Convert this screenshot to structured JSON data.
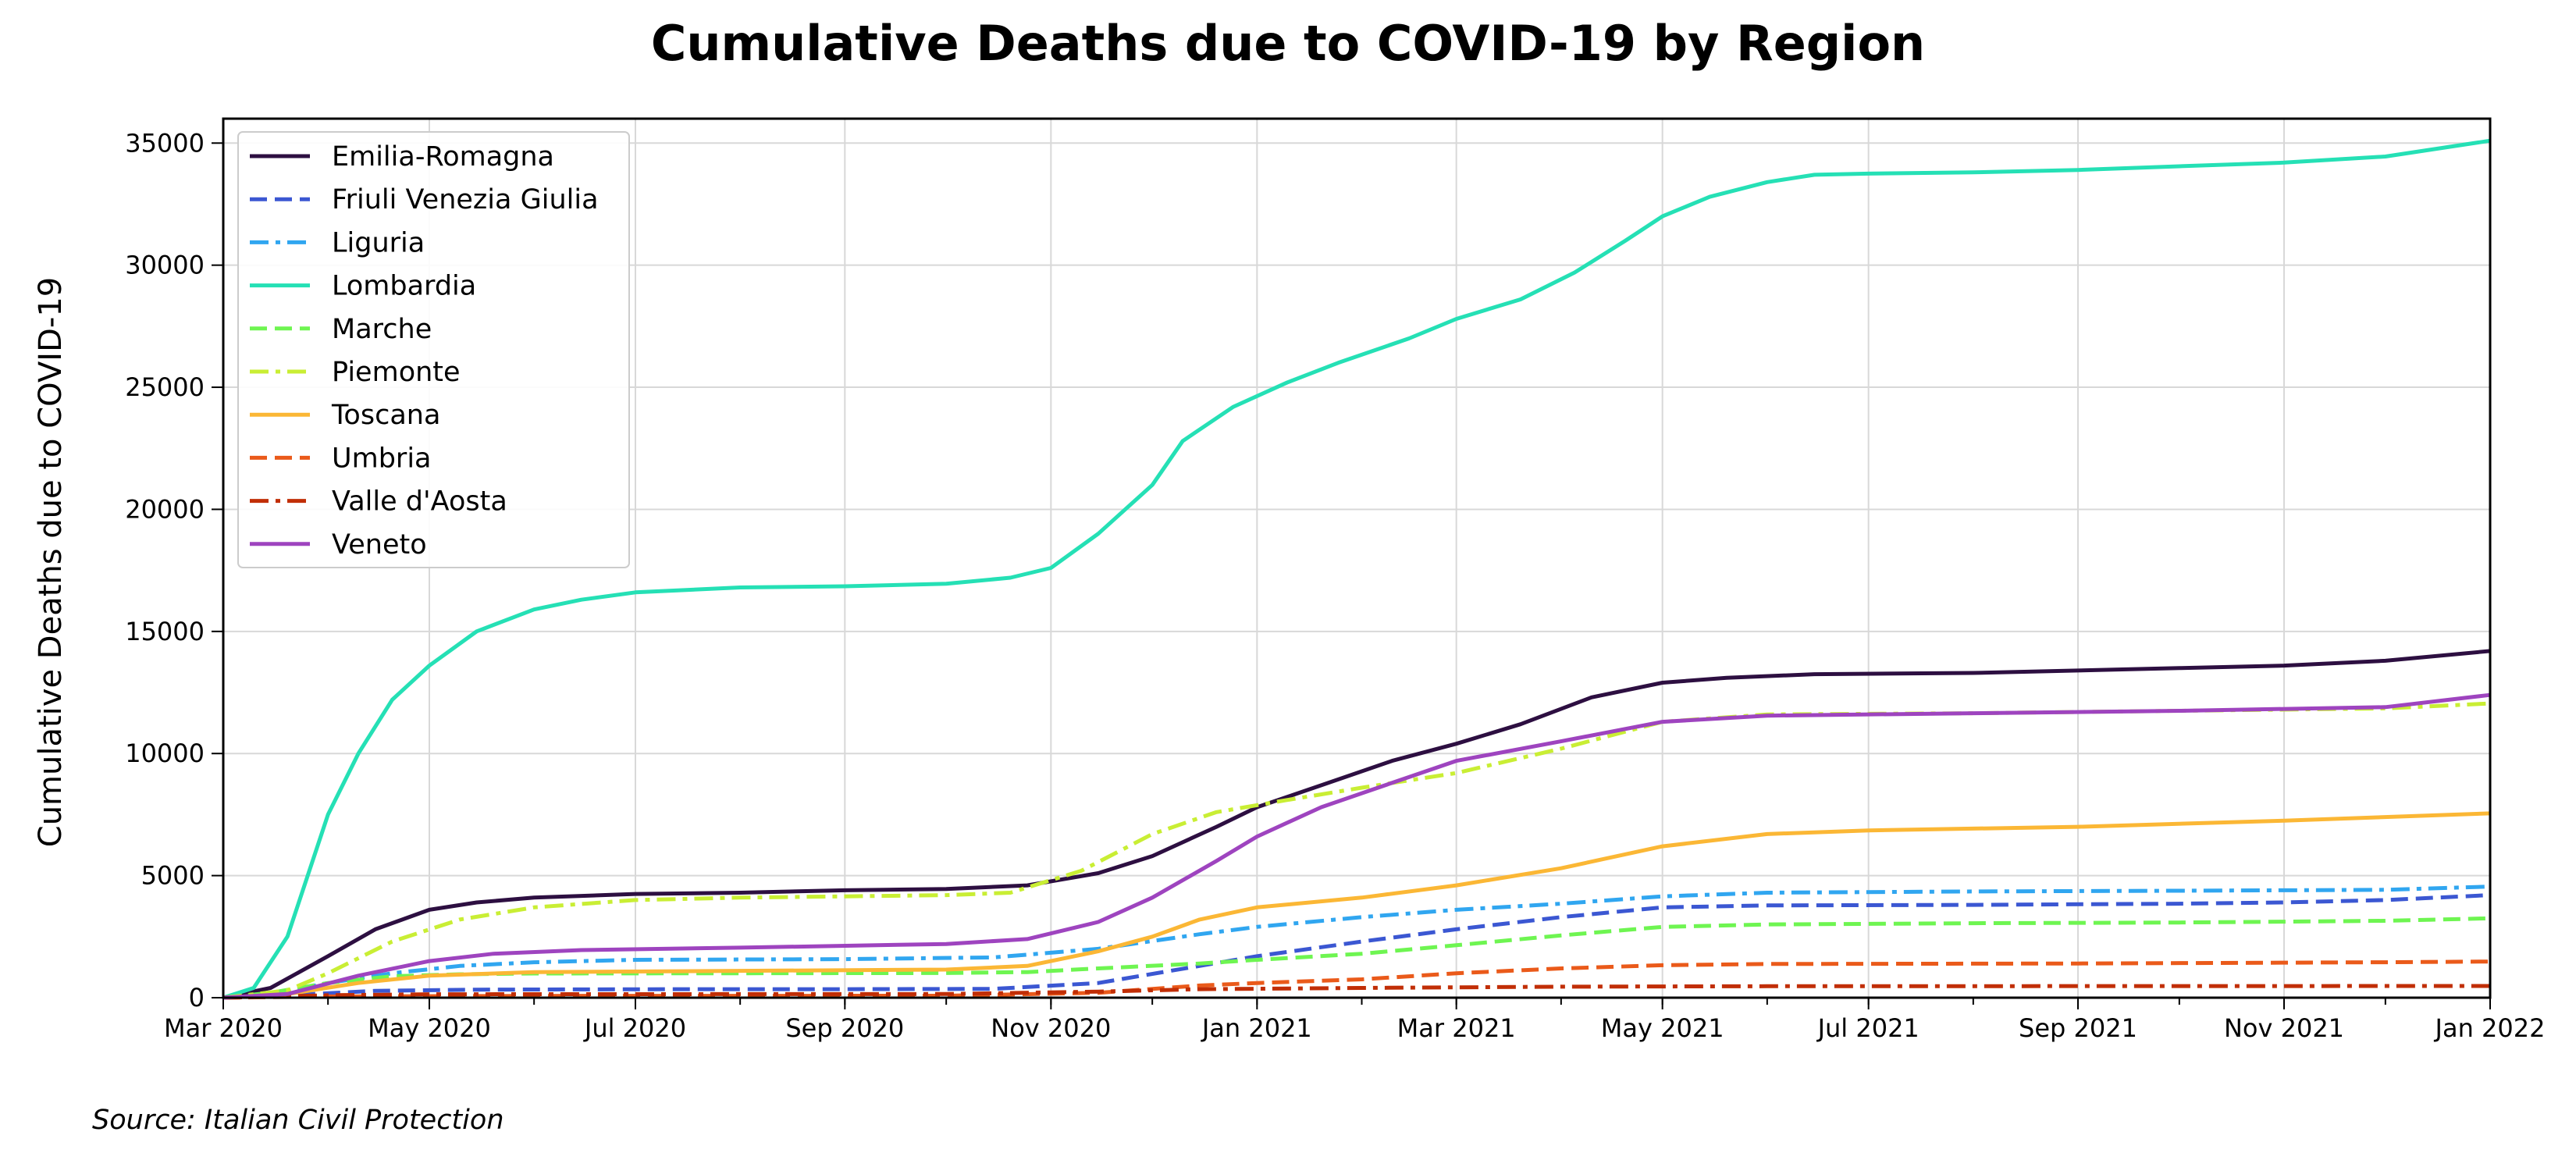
{
  "chart_data": {
    "type": "line",
    "title": "Cumulative Deaths due to COVID-19 by Region",
    "xlabel": "",
    "ylabel": "Cumulative Deaths due to COVID-19",
    "source_note": "Source: Italian Civil Protection",
    "x_axis": {
      "type": "date",
      "range": [
        "2020-03-01",
        "2022-01-01"
      ],
      "ticks": [
        {
          "date": "2020-03-01",
          "label": "Mar 2020"
        },
        {
          "date": "2020-05-01",
          "label": "May 2020"
        },
        {
          "date": "2020-07-01",
          "label": "Jul 2020"
        },
        {
          "date": "2020-09-01",
          "label": "Sep 2020"
        },
        {
          "date": "2020-11-01",
          "label": "Nov 2020"
        },
        {
          "date": "2021-01-01",
          "label": "Jan 2021"
        },
        {
          "date": "2021-03-01",
          "label": "Mar 2021"
        },
        {
          "date": "2021-05-01",
          "label": "May 2021"
        },
        {
          "date": "2021-07-01",
          "label": "Jul 2021"
        },
        {
          "date": "2021-09-01",
          "label": "Sep 2021"
        },
        {
          "date": "2021-11-01",
          "label": "Nov 2021"
        },
        {
          "date": "2022-01-01",
          "label": "Jan 2022"
        }
      ]
    },
    "y_axis": {
      "range": [
        0,
        36000
      ],
      "ticks": [
        0,
        5000,
        10000,
        15000,
        20000,
        25000,
        30000,
        35000
      ]
    },
    "grid": true,
    "legend_position": "upper-left",
    "series": [
      {
        "name": "Emilia-Romagna",
        "color": "#2d0f41",
        "dash": "solid",
        "points": [
          [
            "2020-03-01",
            0
          ],
          [
            "2020-03-15",
            400
          ],
          [
            "2020-04-01",
            1700
          ],
          [
            "2020-04-15",
            2800
          ],
          [
            "2020-05-01",
            3600
          ],
          [
            "2020-05-15",
            3900
          ],
          [
            "2020-06-01",
            4100
          ],
          [
            "2020-07-01",
            4250
          ],
          [
            "2020-08-01",
            4300
          ],
          [
            "2020-09-01",
            4400
          ],
          [
            "2020-10-01",
            4450
          ],
          [
            "2020-10-25",
            4600
          ],
          [
            "2020-11-15",
            5100
          ],
          [
            "2020-12-01",
            5800
          ],
          [
            "2020-12-20",
            7000
          ],
          [
            "2021-01-01",
            7800
          ],
          [
            "2021-01-20",
            8700
          ],
          [
            "2021-02-10",
            9700
          ],
          [
            "2021-03-01",
            10400
          ],
          [
            "2021-03-20",
            11200
          ],
          [
            "2021-04-10",
            12300
          ],
          [
            "2021-05-01",
            12900
          ],
          [
            "2021-05-20",
            13100
          ],
          [
            "2021-06-15",
            13250
          ],
          [
            "2021-08-01",
            13300
          ],
          [
            "2021-09-01",
            13400
          ],
          [
            "2021-10-01",
            13500
          ],
          [
            "2021-11-01",
            13600
          ],
          [
            "2021-12-01",
            13800
          ],
          [
            "2022-01-01",
            14200
          ]
        ]
      },
      {
        "name": "Friuli Venezia Giulia",
        "color": "#3b57d2",
        "dash": "dashed",
        "points": [
          [
            "2020-03-01",
            0
          ],
          [
            "2020-03-20",
            100
          ],
          [
            "2020-04-15",
            280
          ],
          [
            "2020-05-15",
            330
          ],
          [
            "2020-07-01",
            345
          ],
          [
            "2020-09-01",
            350
          ],
          [
            "2020-10-15",
            360
          ],
          [
            "2020-11-15",
            600
          ],
          [
            "2020-12-15",
            1300
          ],
          [
            "2021-01-01",
            1700
          ],
          [
            "2021-02-01",
            2300
          ],
          [
            "2021-03-01",
            2800
          ],
          [
            "2021-04-01",
            3300
          ],
          [
            "2021-05-01",
            3700
          ],
          [
            "2021-06-01",
            3780
          ],
          [
            "2021-08-01",
            3800
          ],
          [
            "2021-10-01",
            3850
          ],
          [
            "2021-11-01",
            3900
          ],
          [
            "2021-12-01",
            4000
          ],
          [
            "2022-01-01",
            4200
          ]
        ]
      },
      {
        "name": "Liguria",
        "color": "#30a6f0",
        "dash": "dashdot",
        "points": [
          [
            "2020-03-01",
            0
          ],
          [
            "2020-03-15",
            150
          ],
          [
            "2020-04-01",
            600
          ],
          [
            "2020-04-20",
            1000
          ],
          [
            "2020-05-10",
            1300
          ],
          [
            "2020-06-01",
            1450
          ],
          [
            "2020-07-01",
            1550
          ],
          [
            "2020-09-01",
            1580
          ],
          [
            "2020-10-15",
            1650
          ],
          [
            "2020-11-15",
            2000
          ],
          [
            "2020-12-15",
            2600
          ],
          [
            "2021-01-01",
            2900
          ],
          [
            "2021-02-01",
            3300
          ],
          [
            "2021-03-01",
            3600
          ],
          [
            "2021-04-01",
            3850
          ],
          [
            "2021-05-01",
            4150
          ],
          [
            "2021-06-01",
            4300
          ],
          [
            "2021-08-01",
            4350
          ],
          [
            "2021-10-01",
            4380
          ],
          [
            "2021-12-01",
            4420
          ],
          [
            "2022-01-01",
            4550
          ]
        ]
      },
      {
        "name": "Lombardia",
        "color": "#25e0b5",
        "dash": "solid",
        "points": [
          [
            "2020-03-01",
            0
          ],
          [
            "2020-03-10",
            400
          ],
          [
            "2020-03-20",
            2500
          ],
          [
            "2020-04-01",
            7500
          ],
          [
            "2020-04-10",
            10000
          ],
          [
            "2020-04-20",
            12200
          ],
          [
            "2020-05-01",
            13600
          ],
          [
            "2020-05-15",
            15000
          ],
          [
            "2020-06-01",
            15900
          ],
          [
            "2020-06-15",
            16300
          ],
          [
            "2020-07-01",
            16600
          ],
          [
            "2020-08-01",
            16800
          ],
          [
            "2020-09-01",
            16850
          ],
          [
            "2020-10-01",
            16950
          ],
          [
            "2020-10-20",
            17200
          ],
          [
            "2020-11-01",
            17600
          ],
          [
            "2020-11-15",
            19000
          ],
          [
            "2020-12-01",
            21000
          ],
          [
            "2020-12-10",
            22800
          ],
          [
            "2020-12-25",
            24200
          ],
          [
            "2021-01-10",
            25200
          ],
          [
            "2021-01-25",
            26000
          ],
          [
            "2021-02-15",
            27000
          ],
          [
            "2021-03-01",
            27800
          ],
          [
            "2021-03-20",
            28600
          ],
          [
            "2021-04-05",
            29700
          ],
          [
            "2021-04-20",
            31000
          ],
          [
            "2021-05-01",
            32000
          ],
          [
            "2021-05-15",
            32800
          ],
          [
            "2021-06-01",
            33400
          ],
          [
            "2021-06-15",
            33700
          ],
          [
            "2021-07-01",
            33750
          ],
          [
            "2021-08-01",
            33800
          ],
          [
            "2021-09-01",
            33900
          ],
          [
            "2021-10-01",
            34050
          ],
          [
            "2021-11-01",
            34200
          ],
          [
            "2021-12-01",
            34450
          ],
          [
            "2022-01-01",
            35100
          ]
        ]
      },
      {
        "name": "Marche",
        "color": "#6ef551",
        "dash": "dashed",
        "points": [
          [
            "2020-03-01",
            0
          ],
          [
            "2020-03-15",
            200
          ],
          [
            "2020-04-01",
            600
          ],
          [
            "2020-04-20",
            880
          ],
          [
            "2020-05-10",
            960
          ],
          [
            "2020-06-01",
            990
          ],
          [
            "2020-08-01",
            1000
          ],
          [
            "2020-10-01",
            1010
          ],
          [
            "2020-10-25",
            1050
          ],
          [
            "2020-11-15",
            1200
          ],
          [
            "2020-12-15",
            1400
          ],
          [
            "2021-01-01",
            1550
          ],
          [
            "2021-02-01",
            1800
          ],
          [
            "2021-03-01",
            2150
          ],
          [
            "2021-04-01",
            2550
          ],
          [
            "2021-05-01",
            2900
          ],
          [
            "2021-06-01",
            3000
          ],
          [
            "2021-08-01",
            3050
          ],
          [
            "2021-10-01",
            3080
          ],
          [
            "2021-12-01",
            3150
          ],
          [
            "2022-01-01",
            3250
          ]
        ]
      },
      {
        "name": "Piemonte",
        "color": "#c9ee34",
        "dash": "dashdot",
        "points": [
          [
            "2020-03-01",
            0
          ],
          [
            "2020-03-20",
            300
          ],
          [
            "2020-04-01",
            1000
          ],
          [
            "2020-04-20",
            2300
          ],
          [
            "2020-05-10",
            3200
          ],
          [
            "2020-06-01",
            3700
          ],
          [
            "2020-07-01",
            4000
          ],
          [
            "2020-08-01",
            4100
          ],
          [
            "2020-09-01",
            4150
          ],
          [
            "2020-10-01",
            4200
          ],
          [
            "2020-10-20",
            4300
          ],
          [
            "2020-11-10",
            5200
          ],
          [
            "2020-12-01",
            6700
          ],
          [
            "2020-12-20",
            7600
          ],
          [
            "2021-01-10",
            8100
          ],
          [
            "2021-02-01",
            8600
          ],
          [
            "2021-03-01",
            9200
          ],
          [
            "2021-04-01",
            10200
          ],
          [
            "2021-05-01",
            11300
          ],
          [
            "2021-06-01",
            11600
          ],
          [
            "2021-08-01",
            11650
          ],
          [
            "2021-10-01",
            11750
          ],
          [
            "2021-12-01",
            11850
          ],
          [
            "2022-01-01",
            12050
          ]
        ]
      },
      {
        "name": "Toscana",
        "color": "#fbb735",
        "dash": "solid",
        "points": [
          [
            "2020-03-01",
            0
          ],
          [
            "2020-03-20",
            150
          ],
          [
            "2020-04-10",
            600
          ],
          [
            "2020-05-01",
            900
          ],
          [
            "2020-06-01",
            1050
          ],
          [
            "2020-08-01",
            1100
          ],
          [
            "2020-10-01",
            1150
          ],
          [
            "2020-10-25",
            1300
          ],
          [
            "2020-11-15",
            1900
          ],
          [
            "2020-12-01",
            2500
          ],
          [
            "2020-12-15",
            3200
          ],
          [
            "2021-01-01",
            3700
          ],
          [
            "2021-02-01",
            4100
          ],
          [
            "2021-03-01",
            4600
          ],
          [
            "2021-04-01",
            5300
          ],
          [
            "2021-05-01",
            6200
          ],
          [
            "2021-06-01",
            6700
          ],
          [
            "2021-07-01",
            6850
          ],
          [
            "2021-09-01",
            7000
          ],
          [
            "2021-11-01",
            7250
          ],
          [
            "2022-01-01",
            7550
          ]
        ]
      },
      {
        "name": "Umbria",
        "color": "#ea5a1a",
        "dash": "dashed",
        "points": [
          [
            "2020-03-01",
            0
          ],
          [
            "2020-04-01",
            50
          ],
          [
            "2020-06-01",
            75
          ],
          [
            "2020-10-01",
            80
          ],
          [
            "2020-11-15",
            200
          ],
          [
            "2020-12-15",
            500
          ],
          [
            "2021-01-01",
            600
          ],
          [
            "2021-02-01",
            750
          ],
          [
            "2021-03-01",
            1000
          ],
          [
            "2021-04-01",
            1200
          ],
          [
            "2021-05-01",
            1330
          ],
          [
            "2021-06-01",
            1380
          ],
          [
            "2021-09-01",
            1400
          ],
          [
            "2021-12-01",
            1450
          ],
          [
            "2022-01-01",
            1480
          ]
        ]
      },
      {
        "name": "Valle d'Aosta",
        "color": "#c12e06",
        "dash": "dashdot",
        "points": [
          [
            "2020-03-01",
            0
          ],
          [
            "2020-04-01",
            100
          ],
          [
            "2020-05-01",
            140
          ],
          [
            "2020-10-01",
            150
          ],
          [
            "2020-11-15",
            250
          ],
          [
            "2020-12-15",
            350
          ],
          [
            "2021-02-01",
            400
          ],
          [
            "2021-04-01",
            450
          ],
          [
            "2021-06-01",
            470
          ],
          [
            "2022-01-01",
            480
          ]
        ]
      },
      {
        "name": "Veneto",
        "color": "#9e44bf",
        "dash": "solid",
        "points": [
          [
            "2020-03-01",
            0
          ],
          [
            "2020-03-20",
            150
          ],
          [
            "2020-04-10",
            900
          ],
          [
            "2020-05-01",
            1500
          ],
          [
            "2020-05-20",
            1800
          ],
          [
            "2020-06-15",
            1950
          ],
          [
            "2020-08-01",
            2050
          ],
          [
            "2020-10-01",
            2200
          ],
          [
            "2020-10-25",
            2400
          ],
          [
            "2020-11-15",
            3100
          ],
          [
            "2020-12-01",
            4100
          ],
          [
            "2020-12-20",
            5600
          ],
          [
            "2021-01-01",
            6600
          ],
          [
            "2021-01-20",
            7800
          ],
          [
            "2021-02-10",
            8800
          ],
          [
            "2021-03-01",
            9700
          ],
          [
            "2021-04-01",
            10500
          ],
          [
            "2021-05-01",
            11300
          ],
          [
            "2021-06-01",
            11550
          ],
          [
            "2021-08-01",
            11650
          ],
          [
            "2021-10-01",
            11750
          ],
          [
            "2021-12-01",
            11900
          ],
          [
            "2022-01-01",
            12400
          ]
        ]
      }
    ]
  }
}
